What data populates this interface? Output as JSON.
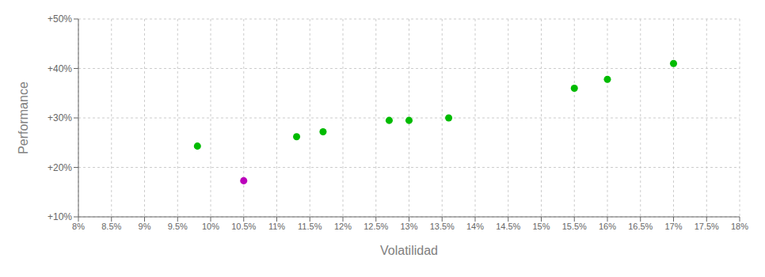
{
  "chart_data": {
    "type": "scatter",
    "xlabel": "Volatilidad",
    "ylabel": "Performance",
    "xlim": [
      0.08,
      0.18
    ],
    "ylim": [
      0.1,
      0.5
    ],
    "xticks": [
      {
        "value": 0.08,
        "label": "8%"
      },
      {
        "value": 0.085,
        "label": "8.5%"
      },
      {
        "value": 0.09,
        "label": "9%"
      },
      {
        "value": 0.095,
        "label": "9.5%"
      },
      {
        "value": 0.1,
        "label": "10%"
      },
      {
        "value": 0.105,
        "label": "10.5%"
      },
      {
        "value": 0.11,
        "label": "11%"
      },
      {
        "value": 0.115,
        "label": "11.5%"
      },
      {
        "value": 0.12,
        "label": "12%"
      },
      {
        "value": 0.125,
        "label": "12.5%"
      },
      {
        "value": 0.13,
        "label": "13%"
      },
      {
        "value": 0.135,
        "label": "13.5%"
      },
      {
        "value": 0.14,
        "label": "14%"
      },
      {
        "value": 0.145,
        "label": "14.5%"
      },
      {
        "value": 0.15,
        "label": "15%"
      },
      {
        "value": 0.155,
        "label": "15.5%"
      },
      {
        "value": 0.16,
        "label": "16%"
      },
      {
        "value": 0.165,
        "label": "16.5%"
      },
      {
        "value": 0.17,
        "label": "17%"
      },
      {
        "value": 0.175,
        "label": "17.5%"
      },
      {
        "value": 0.18,
        "label": "18%"
      }
    ],
    "yticks": [
      {
        "value": 0.1,
        "label": "+10%"
      },
      {
        "value": 0.2,
        "label": "+20%"
      },
      {
        "value": 0.3,
        "label": "+30%"
      },
      {
        "value": 0.4,
        "label": "+40%"
      },
      {
        "value": 0.5,
        "label": "+50%"
      }
    ],
    "grid": true,
    "series": [
      {
        "color": "#00bb00",
        "x": [
          0.098,
          0.113,
          0.117,
          0.127,
          0.13,
          0.136,
          0.155,
          0.16,
          0.17
        ],
        "values": [
          0.243,
          0.262,
          0.272,
          0.295,
          0.295,
          0.3,
          0.36,
          0.378,
          0.41
        ]
      },
      {
        "color": "#bb00bb",
        "x": [
          0.105
        ],
        "values": [
          0.173
        ]
      }
    ]
  }
}
